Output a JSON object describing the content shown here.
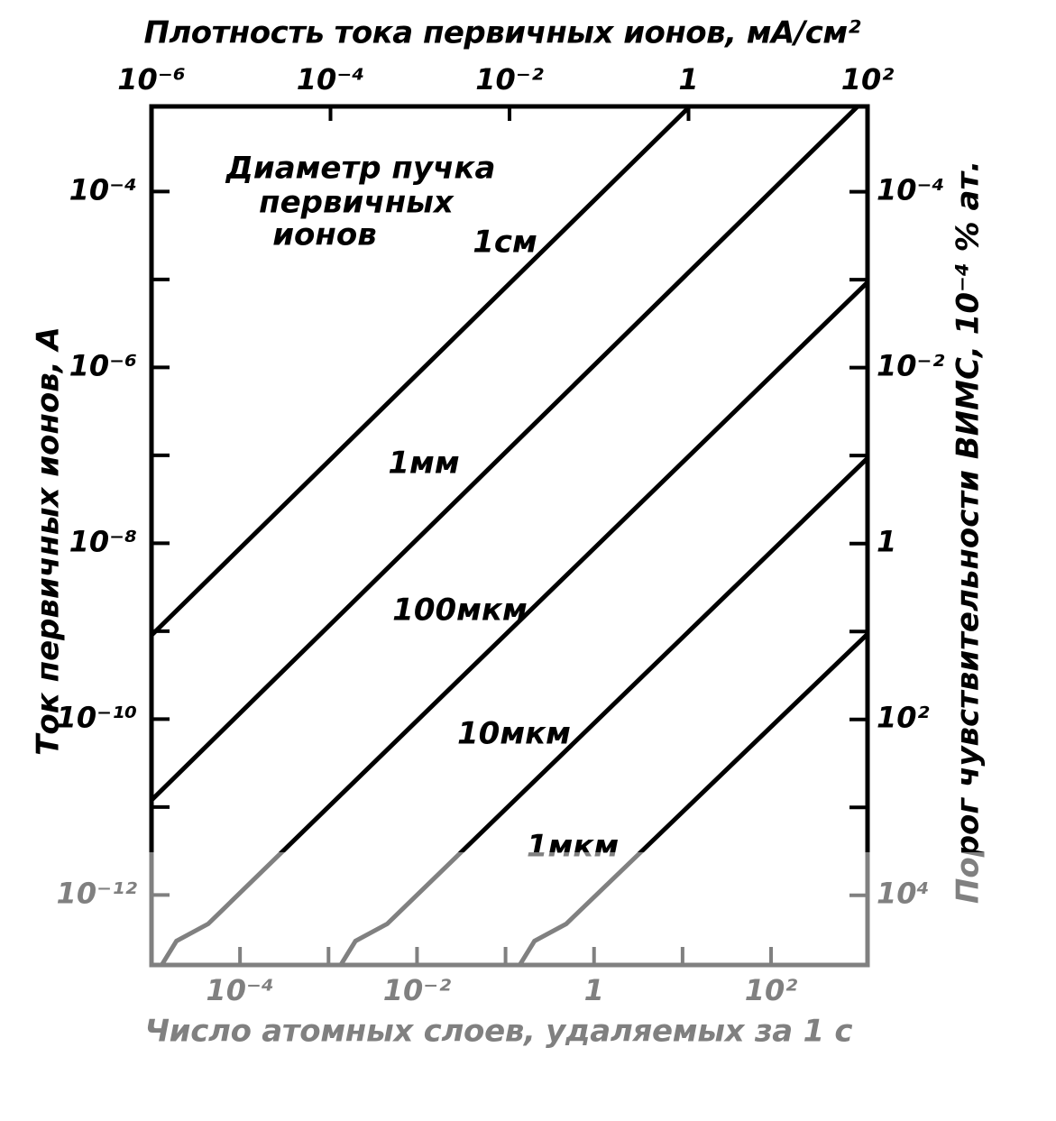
{
  "chart_data": {
    "type": "line",
    "title": "Плотность тока первичных ионов, мА/см²",
    "ylabel": "Ток первичных ионов, А",
    "y2label": "Порог чувствительности ВИМС, 10⁻⁴ % ат.",
    "x2label": "Число атомных слоев, удаляемых за 1 с",
    "annotation": [
      "Диаметр пучка",
      "первичных",
      "ионов"
    ],
    "log": true,
    "color": "#000000",
    "xlim": [
      1e-06,
      100
    ],
    "xticks": [
      {
        "value": 1e-06,
        "label": "10⁻⁶"
      },
      {
        "value": 0.0001,
        "label": "10⁻⁴"
      },
      {
        "value": 0.01,
        "label": "10⁻²"
      },
      1,
      {
        "value": 100,
        "label": "10²"
      }
    ],
    "x2lim": [
      1e-05,
      1230
    ],
    "x2ticks": [
      {
        "value": 0.0001,
        "label": "10⁻⁴"
      },
      {
        "value": 0.01,
        "label": "10⁻²"
      },
      1,
      {
        "value": 100,
        "label": "10²"
      }
    ],
    "x2minor": [
      0.001,
      0.1,
      10
    ],
    "ylim": [
      1.6e-13,
      0.00093
    ],
    "yticks": [
      {
        "value": 0.0001,
        "label": "10⁻⁴"
      },
      {
        "value": 1e-06,
        "label": "10⁻⁶"
      },
      {
        "value": 1e-08,
        "label": "10⁻⁸"
      },
      {
        "value": 1e-10,
        "label": "10⁻¹⁰"
      },
      {
        "value": 1e-12,
        "label": "10⁻¹²"
      }
    ],
    "yminor": [
      1e-05,
      1e-07,
      1e-09,
      1e-11
    ],
    "y2lim": [
      62000,
      1.07e-05
    ],
    "y2ticks": [
      {
        "value": 0.0001,
        "label": "10⁻⁴"
      },
      {
        "value": 0.01,
        "label": "10⁻²"
      },
      1,
      {
        "value": 100,
        "label": "10²"
      },
      {
        "value": 10000,
        "label": "10⁴"
      }
    ],
    "y2minor": [
      0.001,
      0.1,
      10,
      1000
    ],
    "series": [
      {
        "name": "1см",
        "color": "#000000",
        "x": [
          1e-06,
          1
        ],
        "values": [
          9e-10,
          0.0009
        ]
      },
      {
        "name": "1мм",
        "color": "#000000",
        "x": [
          1e-06,
          100
        ],
        "values": [
          1.2e-11,
          0.0012
        ]
      },
      {
        "name": "100мкм",
        "color": "#000000",
        "x": [
          1.3e-06,
          1.9e-06,
          4.3e-06,
          100
        ],
        "values": [
          1.6e-13,
          3e-13,
          4.7e-13,
          9.3e-06
        ]
      },
      {
        "name": "10мкм",
        "color": "#000000",
        "x": [
          0.00013,
          0.00019,
          0.00043,
          100
        ],
        "values": [
          1.6e-13,
          3e-13,
          4.7e-13,
          9.3e-08
        ]
      },
      {
        "name": "1мкм",
        "color": "#000000",
        "x": [
          0.013,
          0.019,
          0.043,
          100
        ],
        "values": [
          1.6e-13,
          3e-13,
          4.7e-13,
          9.3e-10
        ]
      }
    ]
  }
}
